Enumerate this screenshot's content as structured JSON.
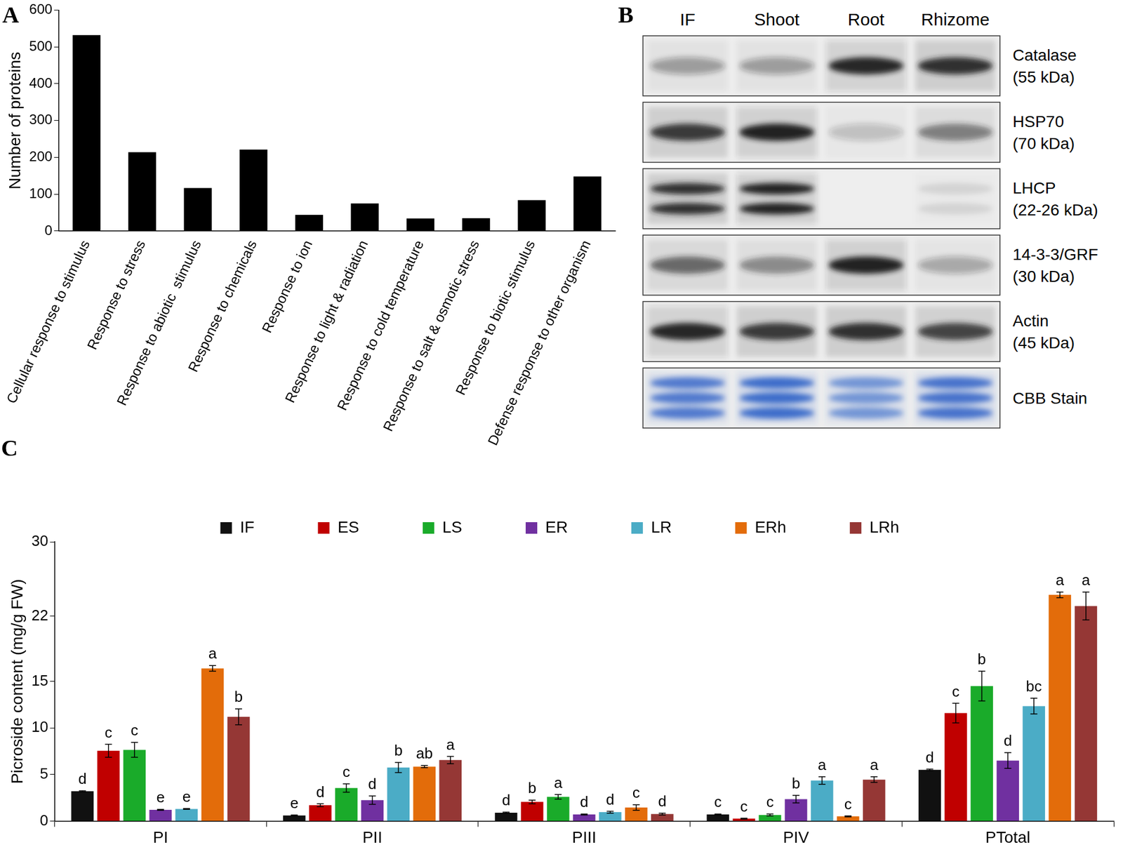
{
  "chart_data": [
    {
      "panel": "A",
      "type": "bar",
      "categories": [
        "Cellular response to stimulus",
        "Response to stress",
        "Response to abiotic  stimulus",
        "Response to chemicals",
        "Response to ion",
        "Response to light & radiation",
        "Response to cold temperature",
        "Response to salt & osmotic stress",
        "Response to biotic stimulus",
        "Defense response to other organism"
      ],
      "values": [
        532,
        214,
        117,
        221,
        44,
        75,
        34,
        35,
        84,
        148
      ],
      "color": "#000000",
      "y_label": "Number of proteins",
      "ylim": [
        0,
        600
      ],
      "yticks": [
        0,
        100,
        200,
        300,
        400,
        500,
        600
      ],
      "grid": false
    },
    {
      "panel": "C",
      "type": "bar",
      "categories": [
        "PI",
        "PII",
        "PIII",
        "PIV",
        "PTotal"
      ],
      "y_label": "Picroside content (mg/g FW)",
      "series": [
        {
          "name": "IF",
          "color": "#111111",
          "values": [
            3.2,
            0.6,
            0.9,
            0.7,
            5.5
          ],
          "errors": [
            0.05,
            0.05,
            0.05,
            0.05,
            0.08
          ],
          "letters": [
            "d",
            "e",
            "d",
            "c",
            "d"
          ]
        },
        {
          "name": "ES",
          "color": "#c00000",
          "values": [
            7.55,
            1.7,
            2.05,
            0.25,
            11.6
          ],
          "errors": [
            0.7,
            0.15,
            0.2,
            0.05,
            1.05
          ],
          "letters": [
            "c",
            "d",
            "b",
            "c",
            "c"
          ]
        },
        {
          "name": "LS",
          "color": "#1aab2a",
          "values": [
            7.65,
            3.55,
            2.6,
            0.65,
            14.5
          ],
          "errors": [
            0.8,
            0.45,
            0.25,
            0.1,
            1.6
          ],
          "letters": [
            "c",
            "c",
            "a",
            "c",
            "b"
          ]
        },
        {
          "name": "ER",
          "color": "#7030a0",
          "values": [
            1.2,
            2.25,
            0.7,
            2.35,
            6.5
          ],
          "errors": [
            0.05,
            0.45,
            0.05,
            0.4,
            0.85
          ],
          "letters": [
            "e",
            "d",
            "d",
            "b",
            "d"
          ]
        },
        {
          "name": "LR",
          "color": "#4bacc6",
          "values": [
            1.3,
            5.75,
            0.95,
            4.35,
            12.35
          ],
          "errors": [
            0.05,
            0.55,
            0.1,
            0.4,
            0.85
          ],
          "letters": [
            "e",
            "b",
            "d",
            "a",
            "bc"
          ]
        },
        {
          "name": "ERh",
          "color": "#e36c0a",
          "values": [
            16.4,
            5.85,
            1.45,
            0.5,
            24.3
          ],
          "errors": [
            0.3,
            0.12,
            0.3,
            0.05,
            0.3
          ],
          "letters": [
            "a",
            "ab",
            "c",
            "c",
            "a"
          ]
        },
        {
          "name": "LRh",
          "color": "#953735",
          "values": [
            11.2,
            6.55,
            0.75,
            4.45,
            23.1
          ],
          "errors": [
            0.85,
            0.4,
            0.1,
            0.3,
            1.5
          ],
          "letters": [
            "b",
            "a",
            "d",
            "a",
            "a"
          ]
        }
      ],
      "ylim": [
        0,
        30
      ],
      "yticks": [
        0,
        5,
        10,
        15,
        22,
        30
      ],
      "grid": false,
      "legend": "top"
    }
  ],
  "blot": {
    "panel": "B",
    "lanes": [
      "IF",
      "Shoot",
      "Root",
      "Rhizome"
    ],
    "rows": [
      {
        "label": [
          "Catalase",
          "(55 kDa)"
        ],
        "color": "#202020",
        "bands": 1,
        "intensity": [
          0.35,
          0.35,
          0.95,
          0.9
        ]
      },
      {
        "label": [
          "HSP70",
          "(70 kDa)"
        ],
        "color": "#202020",
        "bands": 1,
        "intensity": [
          0.85,
          1.0,
          0.2,
          0.5
        ]
      },
      {
        "label": [
          "LHCP",
          "(22-26 kDa)"
        ],
        "color": "#202020",
        "bands": 2,
        "intensity": [
          0.9,
          1.0,
          0.0,
          0.1
        ]
      },
      {
        "label": [
          "14-3-3/GRF",
          "(30 kDa)"
        ],
        "color": "#202020",
        "bands": 1,
        "intensity": [
          0.6,
          0.45,
          1.0,
          0.3
        ]
      },
      {
        "label": [
          "Actin",
          "(45 kDa)"
        ],
        "color": "#202020",
        "bands": 1,
        "intensity": [
          0.95,
          0.85,
          0.9,
          0.8
        ]
      },
      {
        "label": [
          "CBB Stain"
        ],
        "color": "#2f62c8",
        "bands": 3,
        "intensity": [
          0.8,
          0.9,
          0.6,
          0.85
        ]
      }
    ]
  }
}
